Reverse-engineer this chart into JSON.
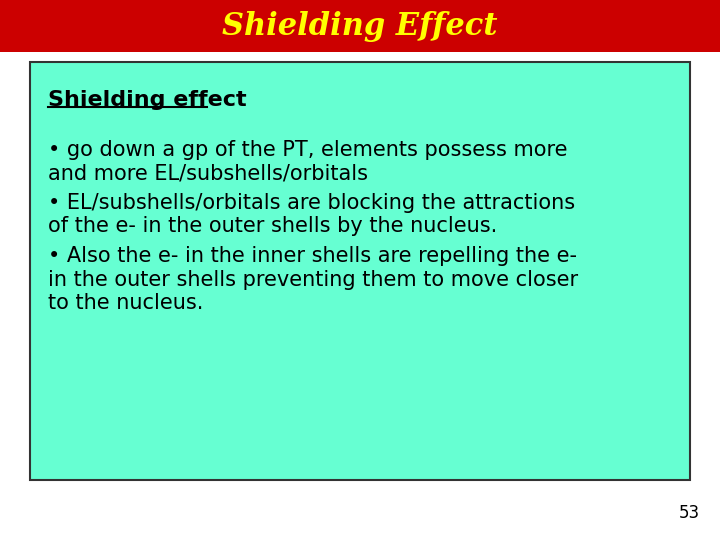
{
  "title": "Shielding Effect",
  "title_color": "#FFFF00",
  "title_bg_color": "#CC0000",
  "slide_bg_color": "#FFFFFF",
  "content_bg_color": "#66FFD2",
  "content_border_color": "#333333",
  "heading": "Shielding effect",
  "heading_color": "#000000",
  "bullet1_line1": "• go down a gp of the PT, elements possess more",
  "bullet1_line2": "and more EL/subshells/orbitals",
  "bullet2_line1": "• EL/subshells/orbitals are blocking the attractions",
  "bullet2_line2": "of the e- in the outer shells by the nucleus.",
  "bullet3_line1": "• Also the e- in the inner shells are repelling the e-",
  "bullet3_line2": "in the outer shells preventing them to move closer",
  "bullet3_line3": "to the nucleus.",
  "page_number": "53",
  "text_color": "#000000",
  "font_size_title": 22,
  "font_size_heading": 16,
  "font_size_body": 15,
  "font_size_page": 12
}
